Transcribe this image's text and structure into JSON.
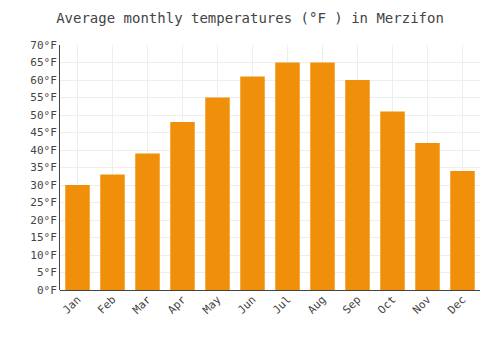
{
  "chart_data": {
    "type": "bar",
    "title": "Average monthly temperatures (°F ) in Merzifon",
    "categories": [
      "Jan",
      "Feb",
      "Mar",
      "Apr",
      "May",
      "Jun",
      "Jul",
      "Aug",
      "Sep",
      "Oct",
      "Nov",
      "Dec"
    ],
    "values": [
      30,
      33,
      39,
      48,
      55,
      61,
      65,
      65,
      60,
      51,
      42,
      34
    ],
    "color": "#F0900A",
    "ylim": [
      0,
      70
    ],
    "yticks": [
      {
        "value": 0,
        "label": "0°F"
      },
      {
        "value": 5,
        "label": "5°F"
      },
      {
        "value": 10,
        "label": "10°F"
      },
      {
        "value": 15,
        "label": "15°F"
      },
      {
        "value": 20,
        "label": "20°F"
      },
      {
        "value": 25,
        "label": "25°F"
      },
      {
        "value": 30,
        "label": "30°F"
      },
      {
        "value": 35,
        "label": "35°F"
      },
      {
        "value": 40,
        "label": "40°F"
      },
      {
        "value": 45,
        "label": "45°F"
      },
      {
        "value": 50,
        "label": "50°F"
      },
      {
        "value": 55,
        "label": "55°F"
      },
      {
        "value": 60,
        "label": "60°F"
      },
      {
        "value": 65,
        "label": "65°F"
      },
      {
        "value": 70,
        "label": "70°F"
      }
    ],
    "grid": true
  }
}
